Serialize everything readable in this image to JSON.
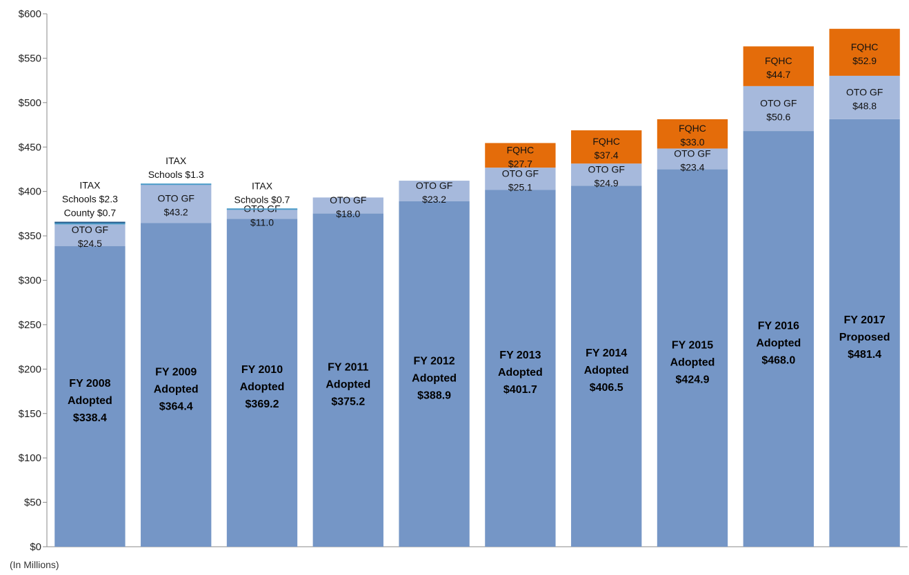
{
  "chart_data": {
    "type": "bar",
    "stacked": true,
    "yunits_note": "(In Millions)",
    "ylim": [
      0,
      600
    ],
    "ytick_step": 50,
    "ytick_prefix": "$",
    "grid": false,
    "colors": {
      "base": "#7596c6",
      "oto": "#a6b9dc",
      "fqhc": "#e46c0a",
      "itax_schools": "#4a9bc8",
      "itax_county": "#2a5f8f"
    },
    "bars": [
      {
        "label_lines": [
          "FY 2008",
          "Adopted",
          "$338.4"
        ],
        "base": 338.4,
        "oto": 24.5,
        "oto_label": [
          "OTO GF",
          "$24.5"
        ],
        "fqhc": 0,
        "fqhc_label": [],
        "itax_schools": 2.3,
        "itax_county": 0.7,
        "itax_label": [
          "ITAX",
          "Schools $2.3",
          "County $0.7"
        ]
      },
      {
        "label_lines": [
          "FY 2009",
          "Adopted",
          "$364.4"
        ],
        "base": 364.4,
        "oto": 43.2,
        "oto_label": [
          "OTO GF",
          "$43.2"
        ],
        "fqhc": 0,
        "fqhc_label": [],
        "itax_schools": 1.3,
        "itax_county": 0,
        "itax_label": [
          "ITAX",
          "Schools $1.3"
        ]
      },
      {
        "label_lines": [
          "FY 2010",
          "Adopted",
          "$369.2"
        ],
        "base": 369.2,
        "oto": 11.0,
        "oto_label": [
          "OTO GF",
          "$11.0"
        ],
        "fqhc": 0,
        "fqhc_label": [],
        "itax_schools": 0.7,
        "itax_county": 0,
        "itax_label": [
          "ITAX",
          "Schools $0.7"
        ]
      },
      {
        "label_lines": [
          "FY 2011",
          "Adopted",
          "$375.2"
        ],
        "base": 375.2,
        "oto": 18.0,
        "oto_label": [
          "OTO GF",
          "$18.0"
        ],
        "fqhc": 0,
        "fqhc_label": [],
        "itax_schools": 0,
        "itax_county": 0,
        "itax_label": []
      },
      {
        "label_lines": [
          "FY 2012",
          "Adopted",
          "$388.9"
        ],
        "base": 388.9,
        "oto": 23.2,
        "oto_label": [
          "OTO GF",
          "$23.2"
        ],
        "fqhc": 0,
        "fqhc_label": [],
        "itax_schools": 0,
        "itax_county": 0,
        "itax_label": []
      },
      {
        "label_lines": [
          "FY 2013",
          "Adopted",
          "$401.7"
        ],
        "base": 401.7,
        "oto": 25.1,
        "oto_label": [
          "OTO GF",
          "$25.1"
        ],
        "fqhc": 27.7,
        "fqhc_label": [
          "FQHC",
          "$27.7"
        ],
        "itax_schools": 0,
        "itax_county": 0,
        "itax_label": []
      },
      {
        "label_lines": [
          "FY 2014",
          "Adopted",
          "$406.5"
        ],
        "base": 406.5,
        "oto": 24.9,
        "oto_label": [
          "OTO GF",
          "$24.9"
        ],
        "fqhc": 37.4,
        "fqhc_label": [
          "FQHC",
          "$37.4"
        ],
        "itax_schools": 0,
        "itax_county": 0,
        "itax_label": []
      },
      {
        "label_lines": [
          "FY 2015",
          "Adopted",
          "$424.9"
        ],
        "base": 424.9,
        "oto": 23.4,
        "oto_label": [
          "OTO GF",
          "$23.4"
        ],
        "fqhc": 33.0,
        "fqhc_label": [
          "FQHC",
          "$33.0"
        ],
        "itax_schools": 0,
        "itax_county": 0,
        "itax_label": []
      },
      {
        "label_lines": [
          "FY 2016",
          "Adopted",
          "$468.0"
        ],
        "base": 468.0,
        "oto": 50.6,
        "oto_label": [
          "OTO GF",
          "$50.6"
        ],
        "fqhc": 44.7,
        "fqhc_label": [
          "FQHC",
          "$44.7"
        ],
        "itax_schools": 0,
        "itax_county": 0,
        "itax_label": []
      },
      {
        "label_lines": [
          "FY 2017",
          "Proposed",
          "$481.4"
        ],
        "base": 481.4,
        "oto": 48.8,
        "oto_label": [
          "OTO GF",
          "$48.8"
        ],
        "fqhc": 52.9,
        "fqhc_label": [
          "FQHC",
          "$52.9"
        ],
        "itax_schools": 0,
        "itax_county": 0,
        "itax_label": []
      }
    ]
  }
}
